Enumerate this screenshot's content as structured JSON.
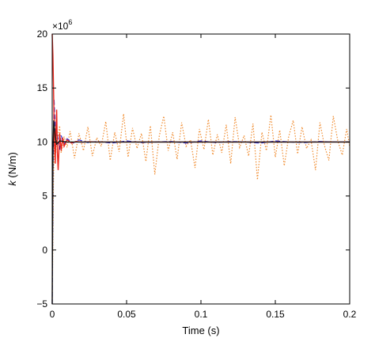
{
  "chart_data": {
    "type": "line",
    "title": "",
    "xlabel": "Time (s)",
    "ylabel_symbol": "k",
    "ylabel_unit": " (N/m)",
    "y_multiplier_base": "×10",
    "y_multiplier_exp": "6",
    "xlim": [
      0,
      0.2
    ],
    "ylim": [
      -5,
      20
    ],
    "x_ticks": [
      0,
      0.05,
      0.1,
      0.15,
      0.2
    ],
    "x_tick_labels": [
      "0",
      "0.05",
      "0.1",
      "0.15",
      "0.2"
    ],
    "y_ticks": [
      -5,
      0,
      5,
      10,
      15,
      20
    ],
    "y_tick_labels": [
      "−5",
      "0",
      "5",
      "10",
      "15",
      "20"
    ],
    "grid": false,
    "series": [
      {
        "color": "#f08a2c",
        "style": "dotted",
        "x": [
          0,
          0.0008,
          0.0016,
          0.0024,
          0.0032,
          0.004,
          0.005,
          0.006,
          0.008,
          0.01,
          0.012,
          0.015,
          0.018,
          0.021,
          0.024,
          0.027,
          0.03,
          0.033,
          0.036,
          0.039,
          0.042,
          0.045,
          0.048,
          0.051,
          0.054,
          0.057,
          0.06,
          0.063,
          0.066,
          0.069,
          0.072,
          0.075,
          0.078,
          0.081,
          0.084,
          0.087,
          0.09,
          0.093,
          0.096,
          0.099,
          0.102,
          0.105,
          0.108,
          0.111,
          0.114,
          0.117,
          0.12,
          0.123,
          0.126,
          0.129,
          0.132,
          0.135,
          0.138,
          0.141,
          0.144,
          0.147,
          0.15,
          0.153,
          0.156,
          0.159,
          0.162,
          0.165,
          0.168,
          0.171,
          0.174,
          0.177,
          0.18,
          0.183,
          0.186,
          0.189,
          0.192,
          0.195,
          0.198,
          0.2
        ],
        "y": [
          -5,
          6,
          12,
          9,
          11,
          10.5,
          11.5,
          9,
          10.5,
          9.5,
          11,
          8.5,
          10.8,
          9.2,
          11.4,
          8.7,
          10.4,
          9.6,
          11.9,
          8.3,
          10.9,
          9.1,
          12.6,
          8.6,
          11.3,
          9.4,
          10.8,
          8.2,
          11.5,
          7.0,
          10.6,
          12.4,
          9.2,
          10.9,
          8.4,
          11.8,
          9.6,
          10.2,
          7.6,
          11.2,
          9.3,
          12.1,
          8.8,
          10.7,
          9.0,
          11.6,
          8.0,
          12.3,
          9.5,
          10.6,
          8.7,
          11.7,
          6.5,
          10.9,
          9.2,
          12.5,
          8.6,
          11.1,
          7.8,
          10.5,
          12.0,
          8.9,
          11.4,
          9.4,
          10.2,
          7.4,
          11.8,
          9.7,
          8.3,
          12.4,
          10.1,
          8.8,
          11.2,
          9.6
        ]
      },
      {
        "color": "#2b2fd9",
        "style": "dashed",
        "x": [
          0,
          0.0006,
          0.0012,
          0.0018,
          0.0024,
          0.003,
          0.004,
          0.005,
          0.006,
          0.008,
          0.01,
          0.014,
          0.018,
          0.024,
          0.03,
          0.04,
          0.05,
          0.06,
          0.07,
          0.08,
          0.09,
          0.1,
          0.11,
          0.12,
          0.13,
          0.14,
          0.15,
          0.16,
          0.17,
          0.18,
          0.19,
          0.2
        ],
        "y": [
          -5,
          8,
          14,
          12,
          10.5,
          11.2,
          10.1,
          9.3,
          10.6,
          9.8,
          10.3,
          9.9,
          10.2,
          9.95,
          10.05,
          9.9,
          10.1,
          9.95,
          10.0,
          10.05,
          9.9,
          10.1,
          9.95,
          10.05,
          10.0,
          9.9,
          10.1,
          10.0,
          9.95,
          10.05,
          10.0,
          10.0
        ]
      },
      {
        "color": "#e8261c",
        "style": "solid",
        "x": [
          0,
          0.0005,
          0.001,
          0.0015,
          0.002,
          0.0025,
          0.003,
          0.0035,
          0.004,
          0.005,
          0.006,
          0.007,
          0.008,
          0.01,
          0.013,
          0.016,
          0.02,
          0.025,
          0.03,
          0.04,
          0.05,
          0.06,
          0.08,
          0.1,
          0.12,
          0.14,
          0.16,
          0.18,
          0.2
        ],
        "y": [
          20,
          18,
          14,
          10,
          8,
          11,
          13,
          9,
          7.4,
          10.8,
          9.2,
          10.4,
          9.6,
          10.2,
          9.9,
          10.05,
          9.98,
          10.02,
          10.0,
          10.0,
          10.0,
          10.0,
          10.0,
          10.0,
          10.0,
          10.0,
          10.0,
          10.0,
          10.0
        ]
      },
      {
        "color": "#1a1a1a",
        "style": "solid",
        "x": [
          0,
          0.0005,
          0.001,
          0.002,
          0.003,
          0.005,
          0.01,
          0.2
        ],
        "y": [
          -5,
          9,
          12,
          10.5,
          9.8,
          10.1,
          10.0,
          10.0
        ]
      }
    ]
  }
}
